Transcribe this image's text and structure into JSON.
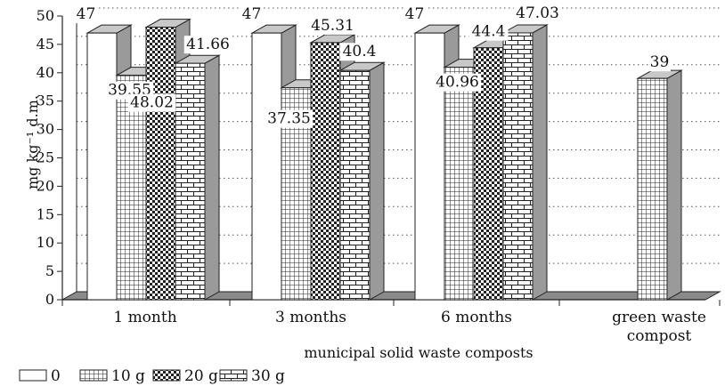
{
  "chart_data": {
    "type": "bar",
    "title": "",
    "xlabel": "municipal solid waste composts",
    "ylabel": "mg kg⁻¹ d.m.",
    "ylim": [
      0,
      50
    ],
    "yticks": [
      "0",
      "5",
      "10",
      "15",
      "20",
      "25",
      "30",
      "35",
      "40",
      "45",
      "50"
    ],
    "grid": "horizontal dotted",
    "legend_position": "bottom",
    "categories": [
      "1 month",
      "3 months",
      "6 months",
      "green waste compost"
    ],
    "series": [
      {
        "name": "0",
        "values": [
          47,
          47,
          47,
          null
        ],
        "labels": [
          "47",
          "47",
          "47",
          ""
        ]
      },
      {
        "name": "10 g",
        "values": [
          39.55,
          37.35,
          40.96,
          39
        ],
        "labels": [
          "39.55",
          "37.35",
          "40.96",
          "39"
        ]
      },
      {
        "name": "20 g",
        "values": [
          48.02,
          45.31,
          44.4,
          null
        ],
        "labels": [
          "48.02",
          "45.31",
          "44.4",
          ""
        ]
      },
      {
        "name": "30 g",
        "values": [
          41.66,
          40.4,
          47.03,
          null
        ],
        "labels": [
          "41.66",
          "40.4",
          "47.03",
          ""
        ]
      }
    ],
    "category_labels": [
      "1 month",
      "3 months",
      "6 months",
      "green waste\ncompost"
    ]
  },
  "colors": {
    "bar_fill": "#ffffff",
    "stroke": "#222222",
    "side_face": "#9a9a9a",
    "top_face": "#c8c8c8",
    "floor": "#8a8a8a",
    "grid": "#555555"
  }
}
